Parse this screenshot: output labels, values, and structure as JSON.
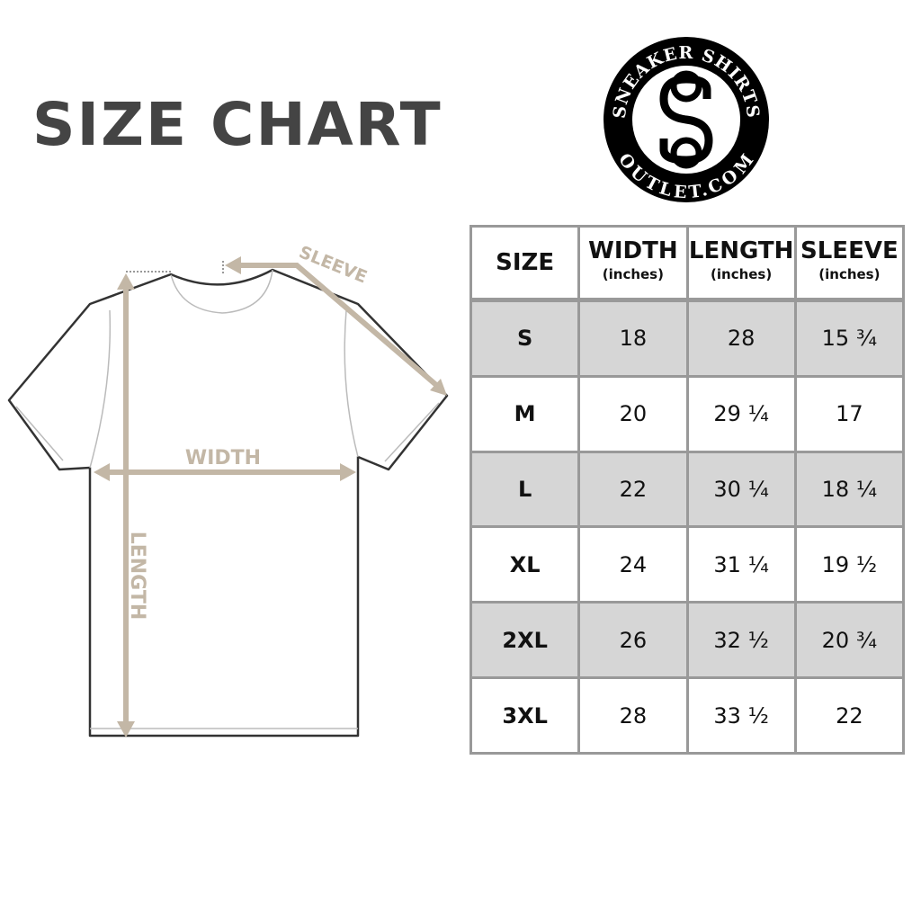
{
  "title": "SIZE CHART",
  "logo": {
    "top_text": "SNEAKER SHIRTS",
    "bottom_text": "OUTLET.COM",
    "monogram": "SS"
  },
  "diagram": {
    "sleeve_label": "SLEEVE",
    "width_label": "WIDTH",
    "length_label": "LENGTH",
    "arrow_color": "#c3b7a6"
  },
  "table": {
    "headers": [
      {
        "label": "SIZE",
        "unit": ""
      },
      {
        "label": "WIDTH",
        "unit": "(inches)"
      },
      {
        "label": "LENGTH",
        "unit": "(inches)"
      },
      {
        "label": "SLEEVE",
        "unit": "(inches)"
      }
    ],
    "rows": [
      [
        "S",
        "18",
        "28",
        "15 ¾"
      ],
      [
        "M",
        "20",
        "29 ¼",
        "17"
      ],
      [
        "L",
        "22",
        "30 ¼",
        "18 ¼"
      ],
      [
        "XL",
        "24",
        "31 ¼",
        "19 ½"
      ],
      [
        "2XL",
        "26",
        "32 ½",
        "20 ¾"
      ],
      [
        "3XL",
        "28",
        "33 ½",
        "22"
      ]
    ]
  }
}
